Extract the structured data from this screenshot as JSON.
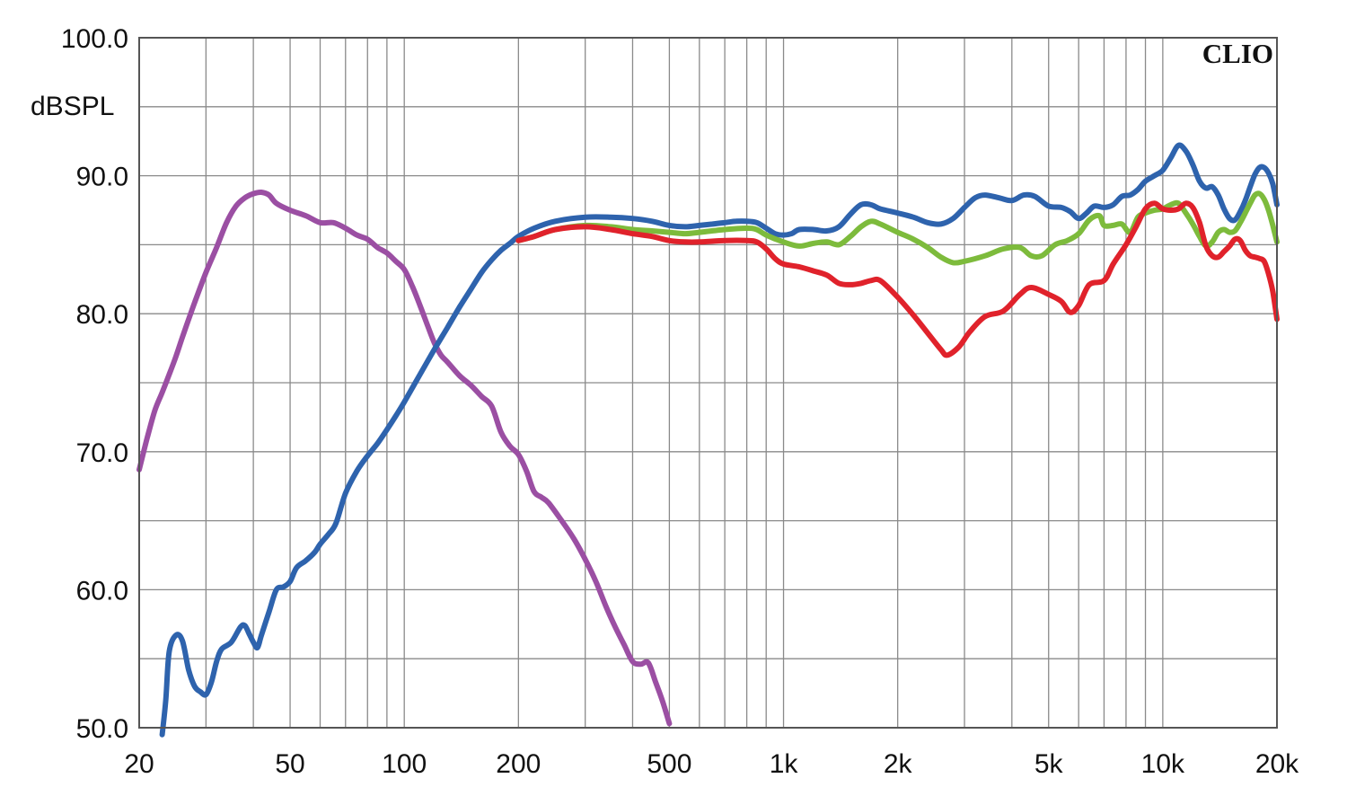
{
  "chart_data": {
    "type": "line",
    "brand": "CLIO",
    "ylabel": "dBSPL",
    "xscale": "log",
    "xlim": [
      20,
      20000
    ],
    "ylim": [
      50,
      100
    ],
    "grid": true,
    "x_tick_labels": [
      {
        "value": 20,
        "label": "20"
      },
      {
        "value": 50,
        "label": "50"
      },
      {
        "value": 100,
        "label": "100"
      },
      {
        "value": 200,
        "label": "200"
      },
      {
        "value": 500,
        "label": "500"
      },
      {
        "value": 1000,
        "label": "1k"
      },
      {
        "value": 2000,
        "label": "2k"
      },
      {
        "value": 5000,
        "label": "5k"
      },
      {
        "value": 10000,
        "label": "10k"
      },
      {
        "value": 20000,
        "label": "20k"
      }
    ],
    "y_tick_labels": [
      {
        "value": 100,
        "label": "100.0"
      },
      {
        "value": 90,
        "label": "90.0"
      },
      {
        "value": 80,
        "label": "80.0"
      },
      {
        "value": 70,
        "label": "70.0"
      },
      {
        "value": 60,
        "label": "60.0"
      },
      {
        "value": 50,
        "label": "50.0"
      }
    ],
    "series": [
      {
        "color": "#9b4fa3",
        "points": [
          [
            20,
            68.7
          ],
          [
            21,
            71
          ],
          [
            22,
            73
          ],
          [
            23,
            74.3
          ],
          [
            24,
            75.6
          ],
          [
            25,
            76.9
          ],
          [
            26,
            78.3
          ],
          [
            28,
            80.8
          ],
          [
            30,
            83
          ],
          [
            32,
            84.8
          ],
          [
            34,
            86.6
          ],
          [
            36,
            87.8
          ],
          [
            38,
            88.4
          ],
          [
            40,
            88.7
          ],
          [
            42,
            88.8
          ],
          [
            44,
            88.6
          ],
          [
            46,
            88
          ],
          [
            50,
            87.5
          ],
          [
            55,
            87.1
          ],
          [
            60,
            86.6
          ],
          [
            65,
            86.6
          ],
          [
            70,
            86.2
          ],
          [
            75,
            85.7
          ],
          [
            80,
            85.4
          ],
          [
            85,
            84.8
          ],
          [
            90,
            84.4
          ],
          [
            95,
            83.8
          ],
          [
            100,
            83.2
          ],
          [
            105,
            82
          ],
          [
            110,
            80.6
          ],
          [
            115,
            79.2
          ],
          [
            120,
            77.9
          ],
          [
            125,
            77
          ],
          [
            130,
            76.5
          ],
          [
            140,
            75.5
          ],
          [
            150,
            74.8
          ],
          [
            160,
            74
          ],
          [
            170,
            73.3
          ],
          [
            180,
            71.4
          ],
          [
            190,
            70.4
          ],
          [
            200,
            69.8
          ],
          [
            210,
            68.6
          ],
          [
            220,
            67.1
          ],
          [
            230,
            66.7
          ],
          [
            240,
            66.3
          ],
          [
            260,
            65
          ],
          [
            280,
            63.7
          ],
          [
            300,
            62.2
          ],
          [
            320,
            60.6
          ],
          [
            340,
            58.8
          ],
          [
            360,
            57.3
          ],
          [
            380,
            56
          ],
          [
            400,
            54.8
          ],
          [
            420,
            54.6
          ],
          [
            440,
            54.7
          ],
          [
            460,
            53.3
          ],
          [
            480,
            51.9
          ],
          [
            500,
            50.3
          ]
        ]
      },
      {
        "color": "#2e63ad",
        "points": [
          [
            23,
            49.5
          ],
          [
            23.5,
            52
          ],
          [
            24,
            55.5
          ],
          [
            25,
            56.7
          ],
          [
            26,
            56.3
          ],
          [
            27,
            54.2
          ],
          [
            28,
            53
          ],
          [
            29,
            52.6
          ],
          [
            30,
            52.4
          ],
          [
            31,
            53.3
          ],
          [
            32,
            54.8
          ],
          [
            33,
            55.7
          ],
          [
            35,
            56.2
          ],
          [
            37,
            57.3
          ],
          [
            38,
            57.4
          ],
          [
            39,
            56.8
          ],
          [
            40,
            56.2
          ],
          [
            41,
            55.8
          ],
          [
            42,
            56.7
          ],
          [
            44,
            58.4
          ],
          [
            46,
            60
          ],
          [
            48,
            60.2
          ],
          [
            50,
            60.6
          ],
          [
            52,
            61.6
          ],
          [
            55,
            62.1
          ],
          [
            58,
            62.7
          ],
          [
            60,
            63.3
          ],
          [
            63,
            64
          ],
          [
            66,
            64.8
          ],
          [
            70,
            67
          ],
          [
            75,
            68.6
          ],
          [
            80,
            69.7
          ],
          [
            85,
            70.6
          ],
          [
            90,
            71.6
          ],
          [
            95,
            72.6
          ],
          [
            100,
            73.6
          ],
          [
            110,
            75.6
          ],
          [
            120,
            77.4
          ],
          [
            130,
            79
          ],
          [
            140,
            80.5
          ],
          [
            150,
            81.8
          ],
          [
            160,
            83
          ],
          [
            170,
            83.9
          ],
          [
            180,
            84.6
          ],
          [
            190,
            85.1
          ],
          [
            200,
            85.6
          ],
          [
            220,
            86.2
          ],
          [
            250,
            86.7
          ],
          [
            300,
            87
          ],
          [
            350,
            87
          ],
          [
            400,
            86.9
          ],
          [
            450,
            86.7
          ],
          [
            500,
            86.4
          ],
          [
            550,
            86.3
          ],
          [
            600,
            86.4
          ],
          [
            650,
            86.5
          ],
          [
            700,
            86.6
          ],
          [
            750,
            86.7
          ],
          [
            800,
            86.7
          ],
          [
            850,
            86.6
          ],
          [
            900,
            86.2
          ],
          [
            950,
            85.8
          ],
          [
            1000,
            85.7
          ],
          [
            1050,
            85.8
          ],
          [
            1100,
            86.1
          ],
          [
            1200,
            86.1
          ],
          [
            1300,
            86
          ],
          [
            1400,
            86.3
          ],
          [
            1500,
            87.2
          ],
          [
            1600,
            87.9
          ],
          [
            1700,
            87.9
          ],
          [
            1800,
            87.6
          ],
          [
            2000,
            87.3
          ],
          [
            2200,
            87
          ],
          [
            2400,
            86.6
          ],
          [
            2600,
            86.5
          ],
          [
            2800,
            86.9
          ],
          [
            3000,
            87.7
          ],
          [
            3200,
            88.4
          ],
          [
            3400,
            88.6
          ],
          [
            3700,
            88.4
          ],
          [
            4000,
            88.2
          ],
          [
            4300,
            88.6
          ],
          [
            4600,
            88.5
          ],
          [
            5000,
            87.8
          ],
          [
            5400,
            87.7
          ],
          [
            5700,
            87.4
          ],
          [
            6000,
            86.9
          ],
          [
            6300,
            87.3
          ],
          [
            6600,
            87.8
          ],
          [
            7000,
            87.7
          ],
          [
            7400,
            87.9
          ],
          [
            7800,
            88.5
          ],
          [
            8200,
            88.6
          ],
          [
            8600,
            89
          ],
          [
            9000,
            89.6
          ],
          [
            9500,
            90
          ],
          [
            10000,
            90.4
          ],
          [
            10500,
            91.3
          ],
          [
            11000,
            92.2
          ],
          [
            11500,
            91.8
          ],
          [
            12000,
            90.8
          ],
          [
            12500,
            89.6
          ],
          [
            13000,
            89.1
          ],
          [
            13500,
            89.2
          ],
          [
            14000,
            88.6
          ],
          [
            14500,
            87.6
          ],
          [
            15000,
            86.9
          ],
          [
            15500,
            86.8
          ],
          [
            16000,
            87.4
          ],
          [
            16500,
            88.2
          ],
          [
            17000,
            89.2
          ],
          [
            17500,
            90.1
          ],
          [
            18000,
            90.6
          ],
          [
            18500,
            90.6
          ],
          [
            19000,
            90.2
          ],
          [
            19500,
            89.4
          ],
          [
            20000,
            87.9
          ]
        ]
      },
      {
        "color": "#7dbb3c",
        "points": [
          [
            200,
            85.3
          ],
          [
            220,
            85.6
          ],
          [
            250,
            86.1
          ],
          [
            300,
            86.4
          ],
          [
            350,
            86.3
          ],
          [
            400,
            86.1
          ],
          [
            450,
            86
          ],
          [
            500,
            85.9
          ],
          [
            550,
            85.8
          ],
          [
            600,
            85.9
          ],
          [
            700,
            86.1
          ],
          [
            800,
            86.2
          ],
          [
            850,
            86.1
          ],
          [
            900,
            85.7
          ],
          [
            1000,
            85.2
          ],
          [
            1100,
            84.9
          ],
          [
            1200,
            85.1
          ],
          [
            1300,
            85.2
          ],
          [
            1400,
            85
          ],
          [
            1500,
            85.6
          ],
          [
            1600,
            86.3
          ],
          [
            1700,
            86.7
          ],
          [
            1800,
            86.5
          ],
          [
            2000,
            85.9
          ],
          [
            2200,
            85.4
          ],
          [
            2400,
            84.8
          ],
          [
            2600,
            84.1
          ],
          [
            2800,
            83.7
          ],
          [
            3000,
            83.8
          ],
          [
            3400,
            84.2
          ],
          [
            3800,
            84.7
          ],
          [
            4200,
            84.8
          ],
          [
            4500,
            84.2
          ],
          [
            4800,
            84.2
          ],
          [
            5200,
            85
          ],
          [
            5600,
            85.3
          ],
          [
            6000,
            85.8
          ],
          [
            6400,
            86.8
          ],
          [
            6800,
            87.1
          ],
          [
            7000,
            86.4
          ],
          [
            7400,
            86.4
          ],
          [
            7800,
            86.5
          ],
          [
            8200,
            85.9
          ],
          [
            8600,
            87
          ],
          [
            9000,
            87.3
          ],
          [
            9500,
            87.5
          ],
          [
            10000,
            87.6
          ],
          [
            10500,
            87.9
          ],
          [
            11000,
            88
          ],
          [
            11500,
            87.3
          ],
          [
            12000,
            86.5
          ],
          [
            12500,
            85.6
          ],
          [
            13000,
            84.9
          ],
          [
            13500,
            85.2
          ],
          [
            14000,
            85.9
          ],
          [
            14500,
            86.1
          ],
          [
            15000,
            85.9
          ],
          [
            15500,
            86
          ],
          [
            16000,
            86.6
          ],
          [
            16500,
            87.3
          ],
          [
            17000,
            88
          ],
          [
            17500,
            88.6
          ],
          [
            18000,
            88.7
          ],
          [
            18500,
            88.3
          ],
          [
            19000,
            87.5
          ],
          [
            19500,
            86.4
          ],
          [
            20000,
            85.2
          ]
        ]
      },
      {
        "color": "#e0222b",
        "points": [
          [
            200,
            85.3
          ],
          [
            220,
            85.6
          ],
          [
            250,
            86.1
          ],
          [
            300,
            86.3
          ],
          [
            350,
            86.1
          ],
          [
            400,
            85.8
          ],
          [
            450,
            85.6
          ],
          [
            500,
            85.3
          ],
          [
            550,
            85.2
          ],
          [
            600,
            85.2
          ],
          [
            700,
            85.3
          ],
          [
            800,
            85.3
          ],
          [
            850,
            85.2
          ],
          [
            900,
            84.7
          ],
          [
            950,
            84
          ],
          [
            1000,
            83.6
          ],
          [
            1100,
            83.4
          ],
          [
            1200,
            83.1
          ],
          [
            1300,
            82.8
          ],
          [
            1400,
            82.2
          ],
          [
            1500,
            82.1
          ],
          [
            1600,
            82.2
          ],
          [
            1700,
            82.4
          ],
          [
            1800,
            82.4
          ],
          [
            2000,
            81.2
          ],
          [
            2200,
            79.9
          ],
          [
            2400,
            78.6
          ],
          [
            2600,
            77.4
          ],
          [
            2700,
            77
          ],
          [
            2900,
            77.6
          ],
          [
            3100,
            78.7
          ],
          [
            3400,
            79.8
          ],
          [
            3800,
            80.2
          ],
          [
            4200,
            81.4
          ],
          [
            4500,
            81.9
          ],
          [
            5000,
            81.4
          ],
          [
            5400,
            80.9
          ],
          [
            5700,
            80.1
          ],
          [
            6000,
            80.6
          ],
          [
            6400,
            82.1
          ],
          [
            7000,
            82.4
          ],
          [
            7400,
            83.6
          ],
          [
            8000,
            85
          ],
          [
            8500,
            86.3
          ],
          [
            9000,
            87.6
          ],
          [
            9500,
            88
          ],
          [
            10000,
            87.6
          ],
          [
            10500,
            87.5
          ],
          [
            11000,
            87.6
          ],
          [
            11500,
            88
          ],
          [
            12000,
            87.7
          ],
          [
            12500,
            86.6
          ],
          [
            13000,
            84.9
          ],
          [
            13500,
            84.2
          ],
          [
            14000,
            84.1
          ],
          [
            14500,
            84.5
          ],
          [
            15000,
            84.9
          ],
          [
            15500,
            85.4
          ],
          [
            16000,
            85.3
          ],
          [
            16500,
            84.6
          ],
          [
            17000,
            84.2
          ],
          [
            17500,
            84.1
          ],
          [
            18000,
            84
          ],
          [
            18500,
            83.8
          ],
          [
            19000,
            82.9
          ],
          [
            19500,
            81.6
          ],
          [
            20000,
            79.6
          ]
        ]
      }
    ]
  }
}
